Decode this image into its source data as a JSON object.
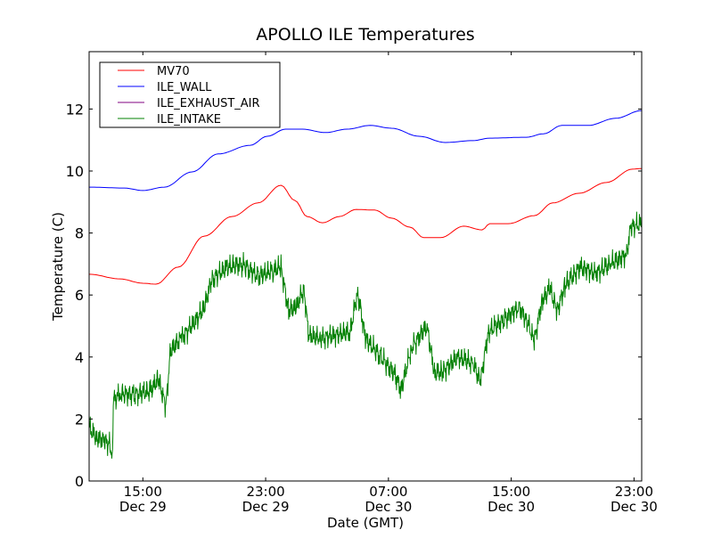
{
  "chart_data": {
    "type": "line",
    "title": "APOLLO ILE Temperatures",
    "xlabel": "Date (GMT)",
    "ylabel": "Temperature (C)",
    "x_units": "hours since Dec 29 11:30 GMT",
    "xlim": [
      0,
      36
    ],
    "ylim": [
      0,
      13.85
    ],
    "yticks": [
      0,
      2,
      4,
      6,
      8,
      10,
      12
    ],
    "xticks": [
      {
        "x": 3.5,
        "time": "15:00",
        "date": "Dec 29"
      },
      {
        "x": 11.5,
        "time": "23:00",
        "date": "Dec 29"
      },
      {
        "x": 19.5,
        "time": "07:00",
        "date": "Dec 30"
      },
      {
        "x": 27.5,
        "time": "15:00",
        "date": "Dec 30"
      },
      {
        "x": 35.5,
        "time": "23:00",
        "date": "Dec 30"
      }
    ],
    "legend_position": "top-left",
    "grid": false,
    "series": [
      {
        "name": "MV70",
        "color": "#ff0000",
        "x": [
          0,
          2,
          3.5,
          4.35,
          5.8,
          7.5,
          9.3,
          11,
          12.5,
          13.4,
          14.2,
          15.2,
          16.3,
          17.4,
          18.6,
          19.7,
          20.9,
          21.8,
          22.9,
          24.4,
          25.6,
          26.1,
          27.3,
          29,
          30.2,
          31.9,
          33.7,
          35.4,
          36
        ],
        "y": [
          6.67,
          6.52,
          6.38,
          6.35,
          6.9,
          7.9,
          8.53,
          8.97,
          9.54,
          9.05,
          8.53,
          8.33,
          8.53,
          8.76,
          8.74,
          8.48,
          8.19,
          7.85,
          7.85,
          8.22,
          8.1,
          8.3,
          8.3,
          8.56,
          8.97,
          9.28,
          9.63,
          10.06,
          10.08
        ]
      },
      {
        "name": "ILE_WALL",
        "color": "#0000ff",
        "x": [
          0,
          2.3,
          3.5,
          4.9,
          6.7,
          8.4,
          10.5,
          11.6,
          12.8,
          13.9,
          15.4,
          16.8,
          18.3,
          19.7,
          21.5,
          23.2,
          25,
          26.1,
          28.5,
          29.6,
          30.8,
          32.5,
          34.3,
          36
        ],
        "y": [
          9.48,
          9.45,
          9.37,
          9.48,
          9.97,
          10.55,
          10.83,
          11.12,
          11.35,
          11.35,
          11.24,
          11.35,
          11.47,
          11.38,
          11.12,
          10.92,
          10.98,
          11.06,
          11.09,
          11.2,
          11.47,
          11.47,
          11.7,
          11.95
        ]
      },
      {
        "name": "ILE_EXHAUST_AIR",
        "color": "#800080",
        "x": [],
        "y": []
      },
      {
        "name": "ILE_INTAKE",
        "color": "#008000",
        "x": [
          0,
          0.5,
          1,
          1.3,
          1.5,
          1.6,
          2,
          3,
          4,
          4.5,
          5,
          5.3,
          6,
          7,
          7.5,
          8,
          9,
          10,
          11,
          12,
          12.5,
          13,
          13.5,
          14,
          14.3,
          15,
          16,
          17,
          17.5,
          18,
          19,
          20,
          20.3,
          21,
          22,
          22.5,
          23,
          24,
          25,
          25.5,
          26,
          27,
          28,
          28.5,
          29,
          29.5,
          30,
          30.5,
          31,
          32,
          33,
          34,
          35,
          35.3,
          36
        ],
        "y": [
          1.7,
          1.4,
          1.3,
          1.2,
          0.9,
          2.6,
          2.8,
          2.8,
          2.9,
          3.3,
          2.4,
          4.2,
          4.6,
          5.2,
          5.6,
          6.5,
          6.9,
          7.0,
          6.6,
          6.8,
          6.9,
          5.5,
          5.6,
          6.2,
          4.7,
          4.6,
          4.7,
          4.8,
          6.1,
          4.6,
          4.0,
          3.4,
          2.9,
          4.3,
          5.0,
          3.5,
          3.5,
          4.0,
          3.8,
          3.2,
          4.8,
          5.2,
          5.6,
          5.2,
          4.5,
          5.8,
          6.2,
          5.5,
          6.3,
          6.9,
          6.7,
          7.0,
          7.3,
          8.2,
          8.3
        ]
      }
    ]
  }
}
